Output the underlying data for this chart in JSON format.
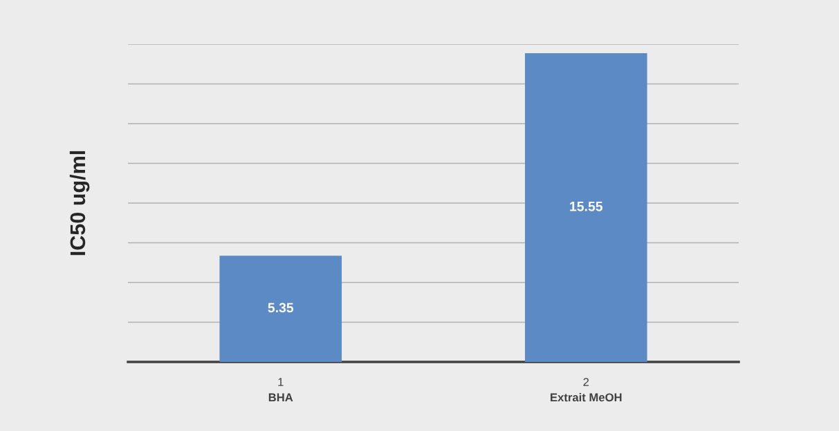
{
  "chart_data": {
    "type": "bar",
    "ylabel": "IC50 ug/ml",
    "categories": [
      "1\nBHA",
      "2\nExtrait MeOH"
    ],
    "values": [
      5.35,
      15.55
    ],
    "color": "#5b8ac4",
    "ylim": [
      0,
      16
    ],
    "yticks": [
      {
        "value": 0,
        "label": null
      },
      {
        "value": 2,
        "label": null
      },
      {
        "value": 4,
        "label": null
      },
      {
        "value": 6,
        "label": null
      },
      {
        "value": 8,
        "label": null
      },
      {
        "value": 10,
        "label": null
      },
      {
        "value": 12,
        "label": null
      },
      {
        "value": 14,
        "label": null
      },
      {
        "value": 16,
        "label": null
      }
    ],
    "grid": "y",
    "tick_labels": "x",
    "data_labels": true
  }
}
